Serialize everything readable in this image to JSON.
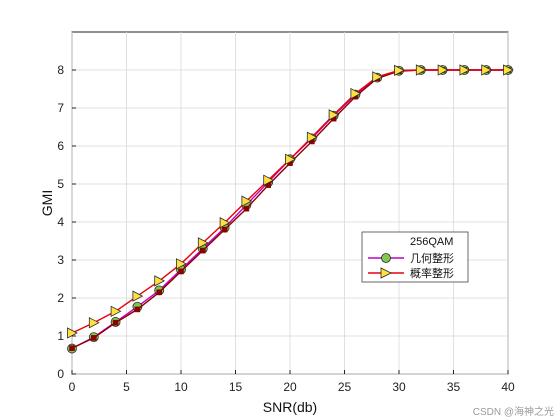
{
  "chart_data": {
    "type": "line",
    "xlabel": "SNR(db)",
    "ylabel": "GMI",
    "xlim": [
      0,
      40
    ],
    "ylim": [
      0,
      9
    ],
    "xticks": [
      0,
      5,
      10,
      15,
      20,
      25,
      30,
      35,
      40
    ],
    "yticks": [
      0,
      1,
      2,
      3,
      4,
      5,
      6,
      7,
      8
    ],
    "grid": true,
    "legend_placement": "center-right",
    "legend_title": "256QAM",
    "x": [
      0,
      2,
      4,
      6,
      8,
      10,
      12,
      14,
      16,
      18,
      20,
      22,
      24,
      26,
      28,
      30,
      32,
      34,
      36,
      38,
      40
    ],
    "series": [
      {
        "name": "几何整形",
        "color": "#c000c0",
        "marker": "circle",
        "marker_fill": "#7ec850",
        "values": [
          0.67,
          0.97,
          1.37,
          1.77,
          2.2,
          2.75,
          3.3,
          3.85,
          4.45,
          5.05,
          5.65,
          6.2,
          6.8,
          7.35,
          7.8,
          7.98,
          8.0,
          8.0,
          8.0,
          8.0,
          8.0
        ]
      },
      {
        "name": "",
        "color": "#8b0000",
        "marker": "square",
        "marker_fill": "#8b0000",
        "values": [
          0.68,
          0.95,
          1.35,
          1.7,
          2.15,
          2.7,
          3.25,
          3.8,
          4.35,
          4.97,
          5.55,
          6.12,
          6.72,
          7.3,
          7.78,
          7.97,
          8.0,
          8.0,
          8.0,
          8.0,
          8.0
        ]
      },
      {
        "name": "概率整形",
        "color": "#e8000b",
        "marker": "triangle-right",
        "marker_fill": "#ffe040",
        "values": [
          1.08,
          1.35,
          1.65,
          2.05,
          2.45,
          2.9,
          3.45,
          3.98,
          4.55,
          5.1,
          5.65,
          6.23,
          6.82,
          7.38,
          7.82,
          7.99,
          8.0,
          8.0,
          8.0,
          8.0,
          8.0
        ]
      }
    ]
  },
  "watermark": "CSDN @海神之光"
}
